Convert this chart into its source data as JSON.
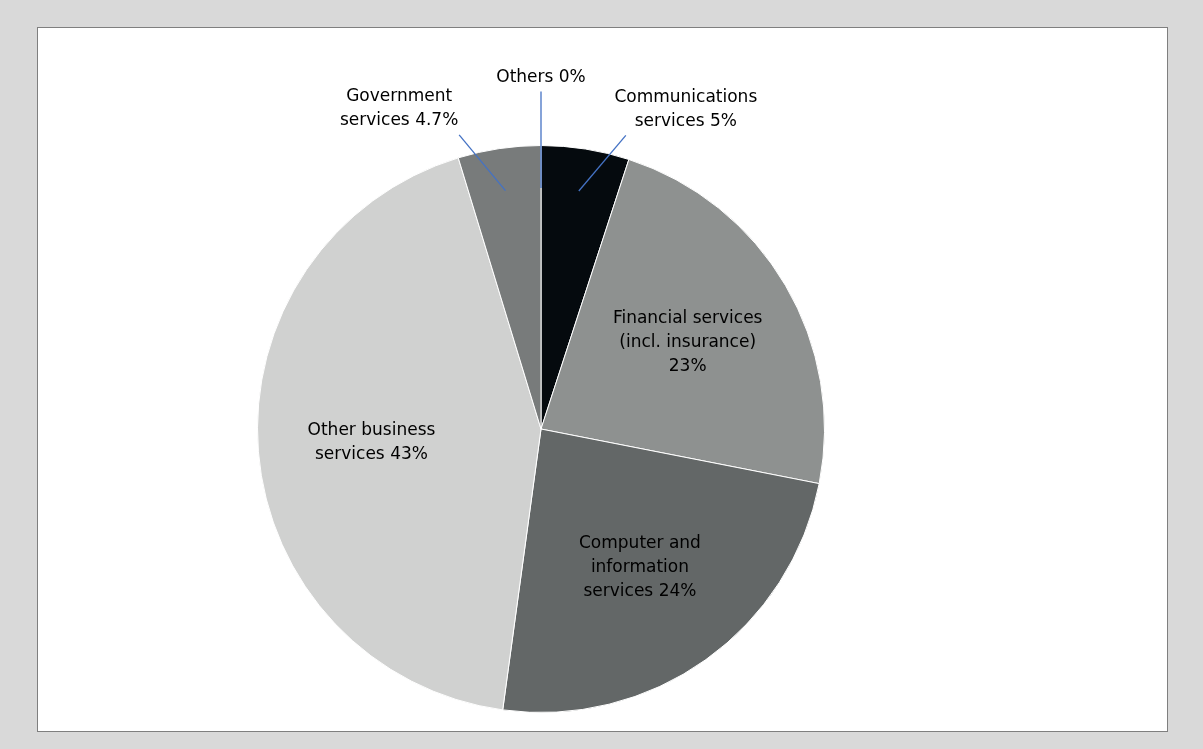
{
  "chart_data": {
    "type": "pie",
    "categories": [
      "Communications services",
      "Financial services (incl. insurance)",
      "Computer and information services",
      "Other business services",
      "Government services",
      "Others"
    ],
    "values": [
      5,
      23,
      24,
      43,
      4.7,
      0
    ],
    "colors": [
      "#050a0e",
      "#8e9190",
      "#636767",
      "#d0d1d0",
      "#787b7b",
      "#a9abab"
    ],
    "value_labels": [
      "5%",
      "23%",
      "24%",
      "43%",
      "4.7%",
      "0%"
    ],
    "legend": false
  }
}
